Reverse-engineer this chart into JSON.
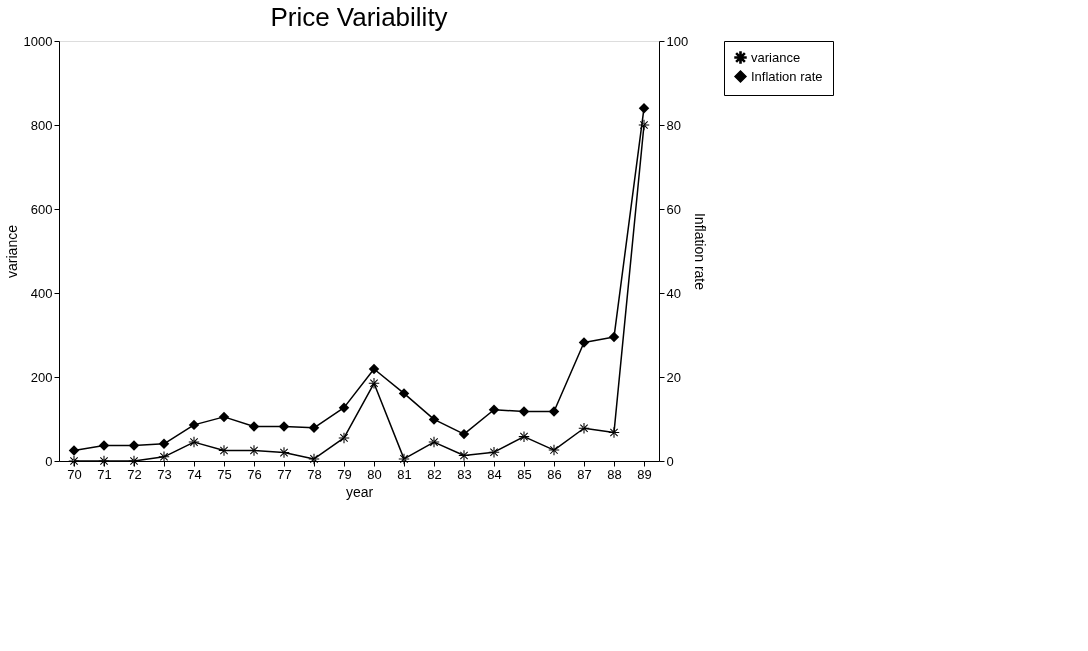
{
  "chart_data": {
    "type": "line",
    "title": "Price Variability",
    "xlabel": "year",
    "ylabel": "variance",
    "y2label": "Inflation rate",
    "categories": [
      "70",
      "71",
      "72",
      "73",
      "74",
      "75",
      "76",
      "77",
      "78",
      "79",
      "80",
      "81",
      "82",
      "83",
      "84",
      "85",
      "86",
      "87",
      "88",
      "89"
    ],
    "series": [
      {
        "name": "variance",
        "color": "#000000",
        "marker": "star",
        "values": [
          0,
          0,
          0,
          10,
          45,
          25,
          25,
          20,
          5,
          55,
          185,
          5,
          45,
          13,
          21,
          58,
          26,
          78,
          68,
          800
        ]
      },
      {
        "name": "Inflation rate",
        "color": "#000000",
        "marker": "diamond",
        "axis": "y2",
        "values": [
          2.5,
          3.7,
          3.7,
          4.1,
          8.6,
          10.5,
          8.2,
          8.2,
          7.9,
          12.7,
          21.9,
          16.1,
          9.9,
          6.4,
          12.2,
          11.8,
          11.8,
          28.2,
          29.5,
          84
        ]
      }
    ],
    "ylim": [
      0,
      1000
    ],
    "yticks": [
      0,
      200,
      400,
      600,
      800,
      1000
    ],
    "y2lim": [
      0,
      100
    ],
    "y2ticks": [
      0,
      20,
      40,
      60,
      80,
      100
    ],
    "grid": false,
    "legend": "right",
    "line_style": "solid"
  }
}
